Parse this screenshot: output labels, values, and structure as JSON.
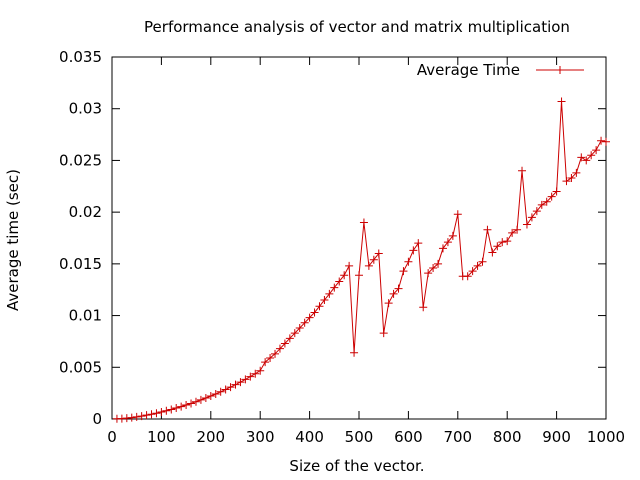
{
  "chart_data": {
    "type": "line",
    "title": "Performance analysis of vector and matrix multiplication",
    "xlabel": "Size of the vector.",
    "ylabel": "Average time (sec)",
    "xlim": [
      0,
      1000
    ],
    "ylim": [
      0,
      0.035
    ],
    "x_ticks": [
      "0",
      "100",
      "200",
      "300",
      "400",
      "500",
      "600",
      "700",
      "800",
      "900",
      "1000"
    ],
    "y_ticks": [
      "0",
      "0.005",
      "0.01",
      "0.015",
      "0.02",
      "0.025",
      "0.03",
      "0.035"
    ],
    "grid": false,
    "legend_position": "top-right",
    "series": [
      {
        "name": "Average Time",
        "color": "#cc0000",
        "marker": "plus",
        "x": [
          10,
          20,
          30,
          40,
          50,
          60,
          70,
          80,
          90,
          100,
          110,
          120,
          130,
          140,
          150,
          160,
          170,
          180,
          190,
          200,
          210,
          220,
          230,
          240,
          250,
          260,
          270,
          280,
          290,
          300,
          310,
          320,
          330,
          340,
          350,
          360,
          370,
          380,
          390,
          400,
          410,
          420,
          430,
          440,
          450,
          460,
          470,
          480,
          490,
          500,
          510,
          520,
          530,
          540,
          550,
          560,
          570,
          580,
          590,
          600,
          610,
          620,
          630,
          640,
          650,
          660,
          670,
          680,
          690,
          700,
          710,
          720,
          730,
          740,
          750,
          760,
          770,
          780,
          790,
          800,
          810,
          820,
          830,
          840,
          850,
          860,
          870,
          880,
          890,
          900,
          910,
          920,
          930,
          940,
          950,
          960,
          970,
          980,
          990,
          1000
        ],
        "y": [
          2e-05,
          4e-05,
          8e-05,
          0.00013,
          0.0002,
          0.00028,
          0.00037,
          0.00046,
          0.00056,
          0.00068,
          0.0008,
          0.00092,
          0.00106,
          0.0012,
          0.00135,
          0.0015,
          0.00167,
          0.00185,
          0.00203,
          0.00222,
          0.00242,
          0.00263,
          0.00285,
          0.00308,
          0.00332,
          0.00357,
          0.00383,
          0.0041,
          0.00438,
          0.00467,
          0.0055,
          0.0059,
          0.0063,
          0.0068,
          0.0073,
          0.0078,
          0.0083,
          0.0088,
          0.0093,
          0.0098,
          0.0103,
          0.0109,
          0.0115,
          0.0121,
          0.0127,
          0.0133,
          0.0139,
          0.0148,
          0.0064,
          0.0139,
          0.019,
          0.0148,
          0.0154,
          0.016,
          0.0083,
          0.0112,
          0.0121,
          0.0126,
          0.0143,
          0.0152,
          0.0163,
          0.017,
          0.0108,
          0.0141,
          0.0146,
          0.015,
          0.0165,
          0.0171,
          0.0177,
          0.0198,
          0.0138,
          0.0138,
          0.0143,
          0.0148,
          0.0152,
          0.0183,
          0.0161,
          0.0167,
          0.0171,
          0.0172,
          0.018,
          0.0183,
          0.024,
          0.0188,
          0.0195,
          0.0201,
          0.0207,
          0.021,
          0.0215,
          0.022,
          0.0307,
          0.023,
          0.0233,
          0.0238,
          0.0253,
          0.025,
          0.0255,
          0.026,
          0.0269,
          0.0268
        ]
      }
    ]
  }
}
